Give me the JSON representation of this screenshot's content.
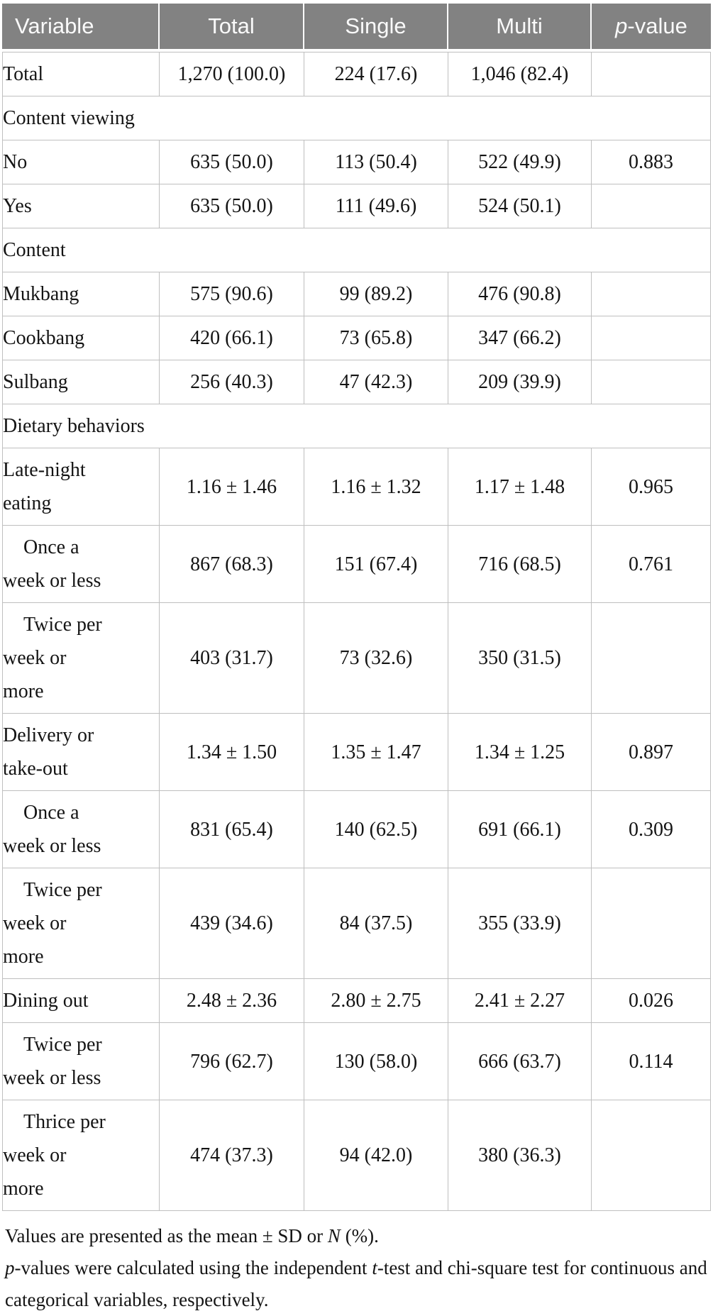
{
  "colors": {
    "header_bg": "#828282",
    "header_text": "#fafafa",
    "border": "#bfbfbf"
  },
  "table": {
    "columns": [
      {
        "name": "variable",
        "segments": [
          {
            "t": "Variable"
          }
        ]
      },
      {
        "name": "total",
        "segments": [
          {
            "t": "Total"
          }
        ]
      },
      {
        "name": "single",
        "segments": [
          {
            "t": "Single"
          }
        ]
      },
      {
        "name": "multi",
        "segments": [
          {
            "t": "Multi"
          }
        ]
      },
      {
        "name": "p-value",
        "segments": [
          {
            "t": "p",
            "i": true
          },
          {
            "t": "-value"
          }
        ]
      }
    ],
    "rows": [
      {
        "type": "data",
        "indent": 1,
        "label_lines": [
          "Total"
        ],
        "values": [
          "1,270 (100.0)",
          "224 (17.6)",
          "1,046 (82.4)",
          ""
        ]
      },
      {
        "type": "section",
        "label_lines": [
          "Content viewing"
        ]
      },
      {
        "type": "data",
        "indent": 2,
        "label_lines": [
          "No"
        ],
        "values": [
          "635 (50.0)",
          "113 (50.4)",
          "522 (49.9)",
          "0.883"
        ]
      },
      {
        "type": "data",
        "indent": 2,
        "label_lines": [
          "Yes"
        ],
        "values": [
          "635 (50.0)",
          "111 (49.6)",
          "524 (50.1)",
          ""
        ]
      },
      {
        "type": "section",
        "label_lines": [
          "Content"
        ]
      },
      {
        "type": "data",
        "indent": 2,
        "label_lines": [
          "Mukbang"
        ],
        "values": [
          "575 (90.6)",
          "99 (89.2)",
          "476 (90.8)",
          ""
        ]
      },
      {
        "type": "data",
        "indent": 2,
        "label_lines": [
          "Cookbang"
        ],
        "values": [
          "420 (66.1)",
          "73 (65.8)",
          "347 (66.2)",
          ""
        ]
      },
      {
        "type": "data",
        "indent": 2,
        "label_lines": [
          "Sulbang"
        ],
        "values": [
          "256 (40.3)",
          "47 (42.3)",
          "209 (39.9)",
          ""
        ]
      },
      {
        "type": "section",
        "label_lines": [
          "Dietary behaviors"
        ]
      },
      {
        "type": "data",
        "indent": 2,
        "label_lines": [
          "Late-night",
          "eating"
        ],
        "values": [
          "1.16 ± 1.46",
          "1.16 ± 1.32",
          "1.17 ± 1.48",
          "0.965"
        ]
      },
      {
        "type": "data",
        "indent": 3,
        "label_lines": [
          "Once a",
          "week or less"
        ],
        "values": [
          "867 (68.3)",
          "151 (67.4)",
          "716 (68.5)",
          "0.761"
        ]
      },
      {
        "type": "data",
        "indent": 3,
        "label_lines": [
          "Twice per",
          "week or",
          "more"
        ],
        "values": [
          "403 (31.7)",
          "73 (32.6)",
          "350 (31.5)",
          ""
        ]
      },
      {
        "type": "data",
        "indent": 2,
        "label_lines": [
          "Delivery or",
          "take-out"
        ],
        "values": [
          "1.34 ± 1.50",
          "1.35 ± 1.47",
          "1.34 ± 1.25",
          "0.897"
        ]
      },
      {
        "type": "data",
        "indent": 3,
        "label_lines": [
          "Once a",
          "week or less"
        ],
        "values": [
          "831 (65.4)",
          "140 (62.5)",
          "691 (66.1)",
          "0.309"
        ]
      },
      {
        "type": "data",
        "indent": 3,
        "label_lines": [
          "Twice per",
          "week or",
          "more"
        ],
        "values": [
          "439 (34.6)",
          "84 (37.5)",
          "355 (33.9)",
          ""
        ]
      },
      {
        "type": "data",
        "indent": 2,
        "label_lines": [
          "Dining out"
        ],
        "values": [
          "2.48 ± 2.36",
          "2.80 ± 2.75",
          "2.41 ± 2.27",
          "0.026"
        ]
      },
      {
        "type": "data",
        "indent": 3,
        "label_lines": [
          "Twice per",
          "week or less"
        ],
        "values": [
          "796 (62.7)",
          "130 (58.0)",
          "666 (63.7)",
          "0.114"
        ]
      },
      {
        "type": "data",
        "indent": 3,
        "label_lines": [
          "Thrice per",
          "week or",
          "more"
        ],
        "values": [
          "474 (37.3)",
          "94 (42.0)",
          "380 (36.3)",
          ""
        ]
      }
    ]
  },
  "footnotes": [
    {
      "segments": [
        {
          "t": "Values are presented as the mean ± SD or "
        },
        {
          "t": "N",
          "i": true
        },
        {
          "t": " (%)."
        }
      ]
    },
    {
      "segments": [
        {
          "t": "p",
          "i": true
        },
        {
          "t": "-values were calculated using the independent "
        },
        {
          "t": "t",
          "i": true
        },
        {
          "t": "-test and chi-square test for continuous and categorical variables, respectively."
        }
      ]
    }
  ]
}
